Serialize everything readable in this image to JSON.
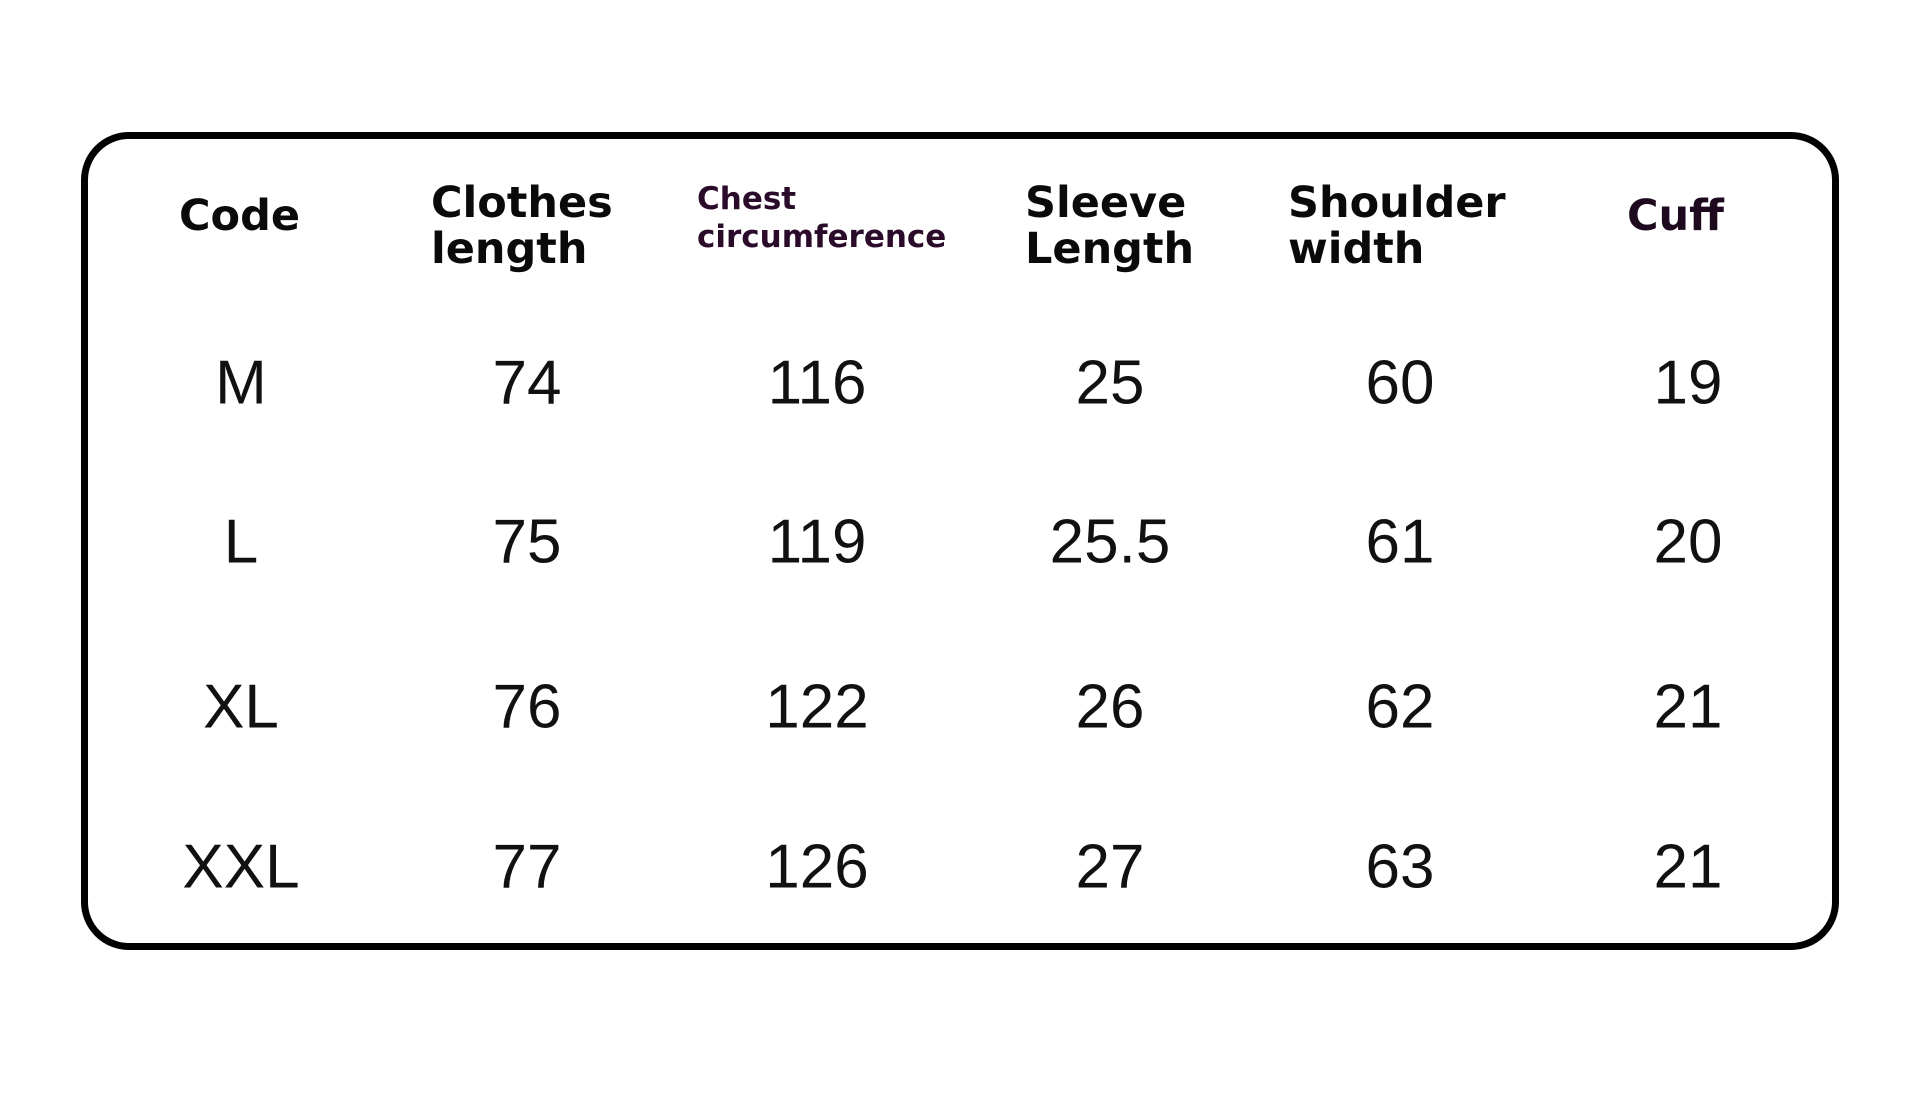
{
  "headers": {
    "code": "Code",
    "clothes_length": [
      "Clothes",
      "length"
    ],
    "chest": [
      "Chest",
      "circumference"
    ],
    "sleeve": [
      "Sleeve",
      "Length"
    ],
    "shoulder": [
      "Shoulder",
      "width"
    ],
    "cuff": "Cuff"
  },
  "rows": [
    [
      "M",
      "74",
      "116",
      "25",
      "60",
      "19"
    ],
    [
      "L",
      "75",
      "119",
      "25.5",
      "61",
      "20"
    ],
    [
      "XL",
      "76",
      "122",
      "26",
      "62",
      "21"
    ],
    [
      "XXL",
      "77",
      "126",
      "27",
      "63",
      "21"
    ]
  ]
}
